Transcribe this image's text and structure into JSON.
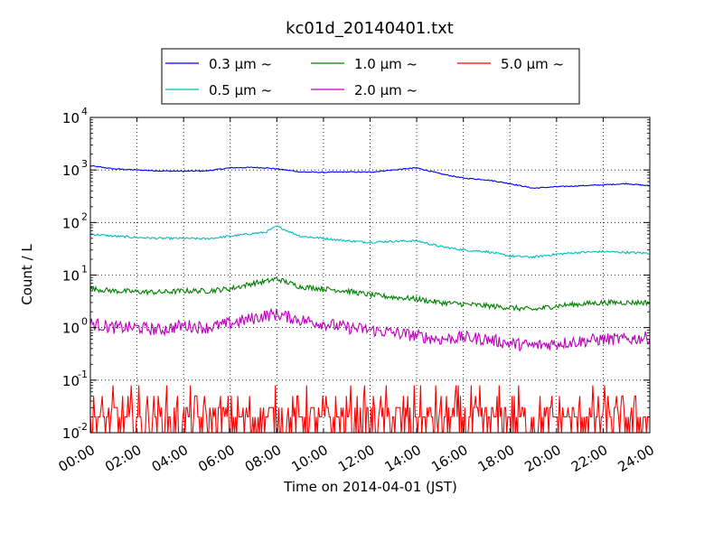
{
  "chart_data": {
    "type": "line",
    "title": "kc01d_20140401.txt",
    "xlabel": "Time on 2014-04-01 (JST)",
    "ylabel": "Count / L",
    "y_scale": "log",
    "ylim": [
      0.01,
      10000
    ],
    "xlim": [
      "00:00",
      "24:00"
    ],
    "grid": true,
    "legend_position": "top-center",
    "x_tick_labels": [
      "00:00",
      "02:00",
      "04:00",
      "06:00",
      "08:00",
      "10:00",
      "12:00",
      "14:00",
      "16:00",
      "18:00",
      "20:00",
      "22:00",
      "24:00"
    ],
    "y_tick_labels": [
      {
        "base": "10",
        "exp": "-2"
      },
      {
        "base": "10",
        "exp": "-1"
      },
      {
        "base": "10",
        "exp": "0"
      },
      {
        "base": "10",
        "exp": "1"
      },
      {
        "base": "10",
        "exp": "2"
      },
      {
        "base": "10",
        "exp": "3"
      },
      {
        "base": "10",
        "exp": "4"
      }
    ],
    "x": [
      "00:00",
      "01:00",
      "02:00",
      "03:00",
      "04:00",
      "05:00",
      "06:00",
      "07:00",
      "07:30",
      "08:00",
      "09:00",
      "10:00",
      "11:00",
      "12:00",
      "13:00",
      "14:00",
      "15:00",
      "16:00",
      "17:00",
      "18:00",
      "19:00",
      "20:00",
      "21:00",
      "22:00",
      "23:00",
      "24:00"
    ],
    "series": [
      {
        "name": "0.3 μm ~",
        "color": "#0000ff",
        "noise": 0.01,
        "values": [
          1200,
          1050,
          1000,
          960,
          950,
          960,
          1100,
          1120,
          1100,
          1050,
          920,
          900,
          920,
          910,
          1000,
          1100,
          850,
          700,
          650,
          550,
          450,
          480,
          500,
          520,
          550,
          500
        ]
      },
      {
        "name": "0.5 μm ~",
        "color": "#00bfbf",
        "noise": 0.02,
        "values": [
          60,
          55,
          52,
          50,
          50,
          49,
          55,
          62,
          65,
          85,
          55,
          50,
          45,
          42,
          44,
          45,
          35,
          30,
          28,
          23,
          22,
          25,
          27,
          28,
          27,
          26
        ]
      },
      {
        "name": "1.0 μm ~",
        "color": "#008000",
        "noise": 0.05,
        "values": [
          5.5,
          5.0,
          4.8,
          4.7,
          5.0,
          5.0,
          5.5,
          7.0,
          7.5,
          8.5,
          6.0,
          5.5,
          5.0,
          4.2,
          3.8,
          3.5,
          3.0,
          2.8,
          2.6,
          2.4,
          2.2,
          2.6,
          2.8,
          3.0,
          3.0,
          3.0
        ]
      },
      {
        "name": "2.0 μm ~",
        "color": "#bf00bf",
        "noise": 0.12,
        "values": [
          1.2,
          1.0,
          1.0,
          0.9,
          1.1,
          1.0,
          1.2,
          1.5,
          1.7,
          1.8,
          1.4,
          1.2,
          1.0,
          0.9,
          0.8,
          0.7,
          0.6,
          0.65,
          0.6,
          0.5,
          0.45,
          0.5,
          0.55,
          0.6,
          0.6,
          0.65
        ]
      },
      {
        "name": "5.0 μm ~",
        "color": "#ff0000",
        "noise": 0.0,
        "discrete": true,
        "values": [
          0.03,
          0.03,
          0.03,
          0.03,
          0.03,
          0.03,
          0.03,
          0.03,
          0.03,
          0.03,
          0.03,
          0.03,
          0.03,
          0.03,
          0.03,
          0.03,
          0.03,
          0.03,
          0.03,
          0.03,
          0.03,
          0.03,
          0.03,
          0.03,
          0.03,
          0.03
        ]
      }
    ]
  }
}
